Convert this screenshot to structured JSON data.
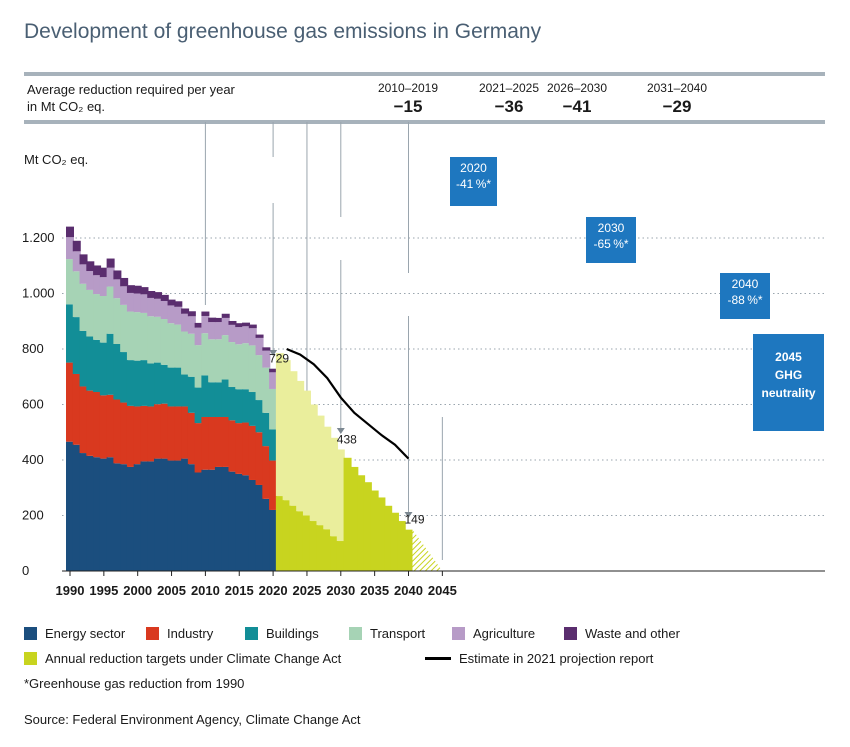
{
  "title": "Development of greenhouse gas emissions in Germany",
  "header": {
    "label_line1": "Average reduction required per year",
    "label_line2": "in Mt CO₂ eq.",
    "periods": [
      {
        "label": "2010–2019",
        "value": "−15"
      },
      {
        "label": "2021–2025",
        "value": "−36"
      },
      {
        "label": "2026–2030",
        "value": "−41"
      },
      {
        "label": "2031–2040",
        "value": "−29"
      }
    ]
  },
  "callouts": [
    {
      "line1": "2020",
      "line2": "-41 %*"
    },
    {
      "line1": "2030",
      "line2": "-65 %*"
    },
    {
      "line1": "2040",
      "line2": "-88 %*"
    },
    {
      "line1": "2045",
      "line2": "GHG",
      "line3": "neutrality"
    }
  ],
  "colors": {
    "energy": "#1b4e7e",
    "industry": "#d9391f",
    "buildings": "#128e97",
    "transport": "#a6d3b5",
    "agriculture": "#b79bc7",
    "waste": "#5a2d6e",
    "target": "#c8d41f",
    "target_light": "#eaee9c",
    "callout": "#1e77bf"
  },
  "legend": {
    "energy": "Energy sector",
    "industry": "Industry",
    "buildings": "Buildings",
    "transport": "Transport",
    "agriculture": "Agriculture",
    "waste": "Waste and other",
    "targets": "Annual reduction targets under Climate Change Act",
    "estimate": "Estimate in 2021 projection report"
  },
  "footnote": "*Greenhouse gas reduction from 1990",
  "source": "Source: Federal Environment Agency, Climate Change Act",
  "chart_data": {
    "type": "bar",
    "ylabel": "Mt CO₂ eq.",
    "ylim": [
      0,
      1300
    ],
    "yticks": [
      0,
      200,
      400,
      600,
      800,
      1000,
      1200
    ],
    "ytick_labels": [
      "0",
      "200",
      "400",
      "600",
      "800",
      "1.000",
      "1.200"
    ],
    "xticks": [
      1990,
      1995,
      2000,
      2005,
      2010,
      2015,
      2020,
      2025,
      2030,
      2035,
      2040,
      2045
    ],
    "years": [
      1990,
      1991,
      1992,
      1993,
      1994,
      1995,
      1996,
      1997,
      1998,
      1999,
      2000,
      2001,
      2002,
      2003,
      2004,
      2005,
      2006,
      2007,
      2008,
      2009,
      2010,
      2011,
      2012,
      2013,
      2014,
      2015,
      2016,
      2017,
      2018,
      2019,
      2020
    ],
    "series": [
      {
        "name": "Energy sector",
        "values": [
          466,
          455,
          425,
          415,
          410,
          405,
          410,
          388,
          385,
          375,
          385,
          395,
          395,
          405,
          405,
          398,
          398,
          405,
          385,
          355,
          365,
          365,
          375,
          375,
          358,
          350,
          345,
          328,
          310,
          260,
          220
        ]
      },
      {
        "name": "Industry",
        "values": [
          285,
          255,
          240,
          235,
          235,
          228,
          225,
          230,
          222,
          220,
          208,
          200,
          198,
          196,
          198,
          195,
          195,
          188,
          185,
          178,
          190,
          190,
          180,
          180,
          185,
          183,
          190,
          195,
          190,
          190,
          178
        ]
      },
      {
        "name": "Buildings",
        "values": [
          210,
          205,
          200,
          195,
          188,
          190,
          220,
          200,
          182,
          165,
          165,
          165,
          155,
          150,
          140,
          140,
          140,
          115,
          130,
          128,
          150,
          125,
          125,
          135,
          120,
          122,
          120,
          122,
          116,
          120,
          112
        ]
      },
      {
        "name": "Transport",
        "values": [
          163,
          165,
          170,
          168,
          165,
          168,
          170,
          165,
          170,
          175,
          175,
          170,
          170,
          165,
          165,
          160,
          155,
          155,
          155,
          153,
          152,
          155,
          155,
          160,
          162,
          162,
          166,
          168,
          162,
          163,
          146
        ]
      },
      {
        "name": "Agriculture",
        "values": [
          79,
          72,
          70,
          68,
          68,
          68,
          68,
          68,
          67,
          67,
          67,
          67,
          66,
          65,
          65,
          64,
          64,
          64,
          63,
          63,
          62,
          62,
          62,
          62,
          62,
          62,
          61,
          62,
          62,
          61,
          60
        ]
      },
      {
        "name": "Waste and other",
        "values": [
          38,
          38,
          36,
          35,
          35,
          34,
          33,
          32,
          30,
          28,
          28,
          26,
          25,
          24,
          22,
          21,
          20,
          19,
          18,
          17,
          16,
          16,
          15,
          15,
          14,
          14,
          13,
          13,
          12,
          12,
          13
        ]
      }
    ],
    "target_years": [
      2021,
      2022,
      2023,
      2024,
      2025,
      2026,
      2027,
      2028,
      2029,
      2030,
      2031,
      2032,
      2033,
      2034,
      2035,
      2036,
      2037,
      2038,
      2039,
      2040
    ],
    "target_totals": [
      785,
      760,
      720,
      685,
      650,
      600,
      560,
      520,
      480,
      438,
      408,
      375,
      345,
      320,
      290,
      265,
      235,
      210,
      180,
      149
    ],
    "target_solid_energy": [
      270,
      255,
      235,
      215,
      200,
      180,
      165,
      150,
      125,
      108
    ],
    "neutrality_path": [
      [
        2040,
        149
      ],
      [
        2045,
        0
      ]
    ],
    "estimate_line": {
      "x": [
        2022,
        2024,
        2026,
        2028,
        2030,
        2032,
        2034,
        2036,
        2038,
        2040
      ],
      "y": [
        800,
        780,
        745,
        695,
        625,
        570,
        530,
        490,
        455,
        405
      ]
    },
    "annotations": [
      {
        "x": 2020,
        "y": 729,
        "text": "729"
      },
      {
        "x": 2030,
        "y": 438,
        "text": "438"
      },
      {
        "x": 2040,
        "y": 149,
        "text": "149"
      }
    ]
  }
}
